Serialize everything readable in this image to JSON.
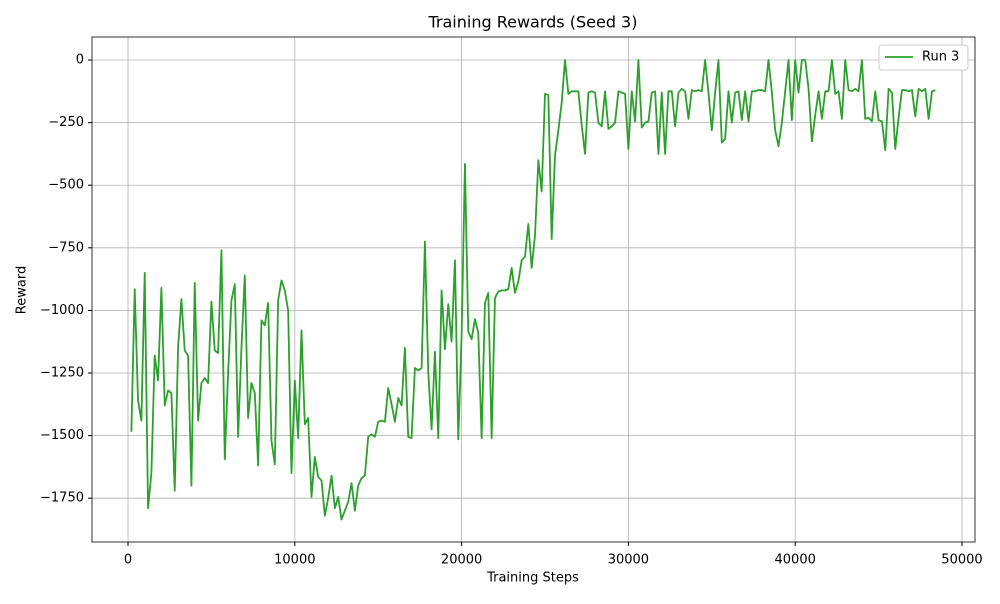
{
  "chart_data": {
    "type": "line",
    "title": "Training Rewards (Seed 3)",
    "x_label": "Training Steps",
    "y_label": "Reward",
    "x": [
      200,
      400,
      600,
      800,
      1000,
      1200,
      1400,
      1600,
      1800,
      2000,
      2200,
      2400,
      2600,
      2800,
      3000,
      3200,
      3400,
      3600,
      3800,
      4000,
      4200,
      4400,
      4600,
      4800,
      5000,
      5200,
      5400,
      5600,
      5800,
      6000,
      6200,
      6400,
      6600,
      6800,
      7000,
      7200,
      7400,
      7600,
      7800,
      8000,
      8200,
      8400,
      8600,
      8800,
      9000,
      9200,
      9400,
      9600,
      9800,
      10000,
      10200,
      10400,
      10600,
      10800,
      11000,
      11200,
      11400,
      11600,
      11800,
      12000,
      12200,
      12400,
      12600,
      12800,
      13000,
      13200,
      13400,
      13600,
      13800,
      14000,
      14200,
      14400,
      14600,
      14800,
      15000,
      15200,
      15400,
      15600,
      15800,
      16000,
      16200,
      16400,
      16600,
      16800,
      17000,
      17200,
      17400,
      17600,
      17800,
      18000,
      18200,
      18400,
      18600,
      18800,
      19000,
      19200,
      19400,
      19600,
      19800,
      20000,
      20200,
      20400,
      20600,
      20800,
      21000,
      21200,
      21400,
      21600,
      21800,
      22000,
      22200,
      22400,
      22600,
      22800,
      23000,
      23200,
      23400,
      23600,
      23800,
      24000,
      24200,
      24400,
      24600,
      24800,
      25000,
      25200,
      25400,
      25600,
      25800,
      26000,
      26200,
      26400,
      26600,
      26800,
      27000,
      27200,
      27400,
      27600,
      27800,
      28000,
      28200,
      28400,
      28600,
      28800,
      29000,
      29200,
      29400,
      29600,
      29800,
      30000,
      30200,
      30400,
      30600,
      30800,
      31000,
      31200,
      31400,
      31600,
      31800,
      32000,
      32200,
      32400,
      32600,
      32800,
      33000,
      33200,
      33400,
      33600,
      33800,
      34000,
      34200,
      34400,
      34600,
      34800,
      35000,
      35200,
      35400,
      35600,
      35800,
      36000,
      36200,
      36400,
      36600,
      36800,
      37000,
      37200,
      37400,
      37600,
      37800,
      38000,
      38200,
      38400,
      38600,
      38800,
      39000,
      39200,
      39400,
      39600,
      39800,
      40000,
      40200,
      40400,
      40600,
      40800,
      41000,
      41200,
      41400,
      41600,
      41800,
      42000,
      42200,
      42400,
      42600,
      42800,
      43000,
      43200,
      43400,
      43600,
      43800,
      44000,
      44200,
      44400,
      44600,
      44800,
      45000,
      45200,
      45400,
      45600,
      45800,
      46000,
      46200,
      46400,
      46600,
      46800,
      47000,
      47200,
      47400,
      47600,
      47800,
      48000,
      48200,
      48400
    ],
    "series": [
      {
        "name": "Run 3",
        "color": "#2ca02c",
        "values": [
          -1485,
          -915,
          -1360,
          -1440,
          -850,
          -1790,
          -1650,
          -1180,
          -1280,
          -910,
          -1380,
          -1320,
          -1330,
          -1720,
          -1150,
          -955,
          -1160,
          -1180,
          -1700,
          -890,
          -1440,
          -1290,
          -1270,
          -1290,
          -965,
          -1160,
          -1170,
          -760,
          -1595,
          -1250,
          -960,
          -895,
          -1505,
          -1150,
          -860,
          -1430,
          -1290,
          -1330,
          -1620,
          -1040,
          -1060,
          -970,
          -1520,
          -1615,
          -960,
          -880,
          -920,
          -1000,
          -1650,
          -1280,
          -1510,
          -1080,
          -1455,
          -1430,
          -1745,
          -1585,
          -1665,
          -1680,
          -1820,
          -1750,
          -1660,
          -1790,
          -1745,
          -1835,
          -1800,
          -1765,
          -1690,
          -1800,
          -1700,
          -1670,
          -1660,
          -1505,
          -1495,
          -1505,
          -1445,
          -1440,
          -1445,
          -1310,
          -1375,
          -1445,
          -1350,
          -1380,
          -1150,
          -1505,
          -1510,
          -1230,
          -1240,
          -1230,
          -725,
          -1245,
          -1475,
          -1165,
          -1510,
          -920,
          -1155,
          -975,
          -1125,
          -800,
          -1515,
          -1100,
          -415,
          -1085,
          -1115,
          -1035,
          -1090,
          -1510,
          -970,
          -930,
          -1510,
          -950,
          -925,
          -920,
          -920,
          -915,
          -830,
          -930,
          -885,
          -800,
          -785,
          -655,
          -830,
          -700,
          -400,
          -525,
          -135,
          -140,
          -715,
          -380,
          -280,
          -170,
          0,
          -135,
          -125,
          -125,
          -125,
          -260,
          -375,
          -130,
          -125,
          -130,
          -250,
          -265,
          -125,
          -275,
          -265,
          -250,
          -125,
          -130,
          -135,
          -355,
          -125,
          -245,
          0,
          -270,
          -250,
          -245,
          -130,
          -125,
          -375,
          -130,
          -375,
          -125,
          -125,
          -265,
          -130,
          -115,
          -125,
          -235,
          -120,
          -125,
          -120,
          -125,
          0,
          -130,
          -280,
          -130,
          0,
          -330,
          -315,
          -125,
          -250,
          -130,
          -125,
          -240,
          -125,
          -245,
          -125,
          -125,
          -120,
          -120,
          -125,
          0,
          -130,
          -280,
          -345,
          -250,
          -125,
          0,
          -240,
          0,
          -130,
          0,
          0,
          -115,
          -325,
          -220,
          -125,
          -235,
          -125,
          -125,
          0,
          -135,
          -125,
          -235,
          0,
          -120,
          -125,
          -115,
          -125,
          0,
          -235,
          -230,
          -245,
          -125,
          -240,
          -245,
          -360,
          -115,
          -130,
          -355,
          -230,
          -120,
          -120,
          -125,
          -120,
          -225,
          -115,
          -125,
          -115,
          -235,
          -125,
          -120
        ]
      }
    ],
    "xlim": [
      -2160,
      50780
    ],
    "ylim": [
      -1925,
      92
    ],
    "xticks": [
      0,
      10000,
      20000,
      30000,
      40000,
      50000
    ],
    "yticks": [
      {
        "value": -1750,
        "label": "−1750"
      },
      {
        "value": -1500,
        "label": "−1500"
      },
      {
        "value": -1250,
        "label": "−1250"
      },
      {
        "value": -1000,
        "label": "−1000"
      },
      {
        "value": -750,
        "label": "−750"
      },
      {
        "value": -500,
        "label": "−500"
      },
      {
        "value": -250,
        "label": "−250"
      },
      0
    ],
    "grid": true,
    "legend": "upper right"
  }
}
